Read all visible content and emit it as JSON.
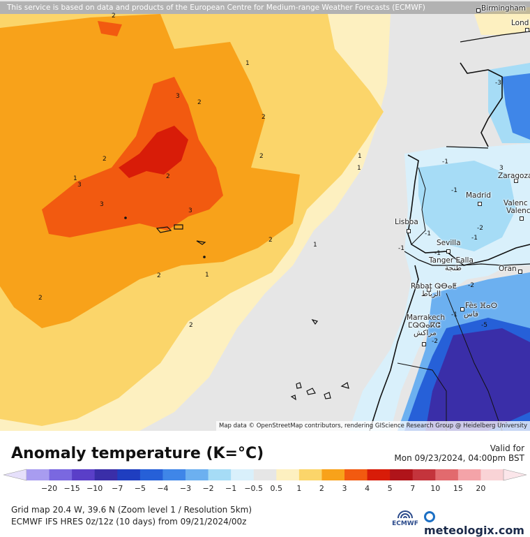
{
  "map": {
    "attribution_top": "This service is based on data and products of the European Centre for Medium-range Weather Forecasts (ECMWF)",
    "attribution_bottom": "Map data © OpenStreetMap contributors, rendering GIScience Research Group @ Heidelberg University",
    "cities": [
      {
        "name": "Birmingham"
      },
      {
        "name": "Lond"
      },
      {
        "name": "Zaragoza"
      },
      {
        "name": "Madrid"
      },
      {
        "name": "Valenc"
      },
      {
        "name": "Valenc"
      },
      {
        "name": "Lisboa"
      },
      {
        "name": "Sevilla"
      },
      {
        "name": "Tanger Ealla"
      },
      {
        "name": "طنجة"
      },
      {
        "name": "Oran"
      },
      {
        "name": "Rabat ⵕⴱⴰⵟ"
      },
      {
        "name": "الرباط"
      },
      {
        "name": "Fès ⴼⴰⵙ"
      },
      {
        "name": "فاس"
      },
      {
        "name": "Marrakech"
      },
      {
        "name": "ⵎⵕⵕⴰⴽⵛ"
      },
      {
        "name": "مراكش"
      }
    ],
    "isolines": [
      "2",
      "1",
      "2",
      "3",
      "2",
      "2",
      "2",
      "1",
      "1",
      "3",
      "2",
      "3",
      "3",
      "2",
      "1",
      "2",
      "2",
      "1",
      "2",
      "1",
      "-3",
      "-1",
      "-1",
      "3",
      "-1",
      "-2",
      "-1",
      "-1",
      "-1",
      "-2",
      "-1",
      "-2",
      "-5"
    ]
  },
  "legend": {
    "title": "Anomaly temperature (K=°C)",
    "valid_label": "Valid for",
    "valid_time": "Mon 09/23/2024, 04:00pm BST",
    "ticks": [
      "−20",
      "−15",
      "−10",
      "−7",
      "−5",
      "−4",
      "−3",
      "−2",
      "−1",
      "−0.5",
      "0.5",
      "1",
      "2",
      "3",
      "4",
      "5",
      "7",
      "10",
      "15",
      "20"
    ],
    "colors": [
      "#a89cf0",
      "#7a68e0",
      "#5a3fc8",
      "#3a2ea8",
      "#1f3ec0",
      "#2660d8",
      "#3f86e8",
      "#6cb0f0",
      "#a6dcf6",
      "#d9f0fb",
      "#e6e6e6",
      "#fdf0c0",
      "#fbd56a",
      "#f8a21a",
      "#f25a10",
      "#d81c08",
      "#b0141a",
      "#c4343c",
      "#e26a6e",
      "#f4a3a8",
      "#f9d3d6"
    ],
    "low_arrow_color": "#e6e0fb",
    "high_arrow_color": "#fbe6ea"
  },
  "footer": {
    "grid_info": "Grid map 20.4 W, 39.6 N (Zoom level 1 / Resolution 5km)",
    "model_info": "ECMWF IFS HRES 0z/12z (10 days) from  09/21/2024/00z",
    "ecmwf_label": "ECMWF",
    "brand": "meteologix.com"
  }
}
